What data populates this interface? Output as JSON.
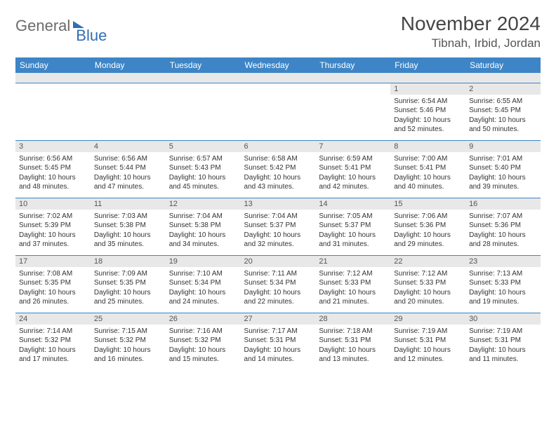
{
  "logo": {
    "part1": "General",
    "part2": "Blue"
  },
  "title": "November 2024",
  "location": "Tibnah, Irbid, Jordan",
  "colors": {
    "header_bg": "#3d85c6",
    "header_text": "#ffffff",
    "daynum_bg": "#e8e8e8",
    "border": "#3d85c6",
    "text": "#333333",
    "logo_gray": "#6b6b6b",
    "logo_blue": "#2f6fb3"
  },
  "weekdays": [
    "Sunday",
    "Monday",
    "Tuesday",
    "Wednesday",
    "Thursday",
    "Friday",
    "Saturday"
  ],
  "weeks": [
    [
      {
        "n": "",
        "sr": "",
        "ss": "",
        "dl": ""
      },
      {
        "n": "",
        "sr": "",
        "ss": "",
        "dl": ""
      },
      {
        "n": "",
        "sr": "",
        "ss": "",
        "dl": ""
      },
      {
        "n": "",
        "sr": "",
        "ss": "",
        "dl": ""
      },
      {
        "n": "",
        "sr": "",
        "ss": "",
        "dl": ""
      },
      {
        "n": "1",
        "sr": "6:54 AM",
        "ss": "5:46 PM",
        "dl": "10 hours and 52 minutes."
      },
      {
        "n": "2",
        "sr": "6:55 AM",
        "ss": "5:45 PM",
        "dl": "10 hours and 50 minutes."
      }
    ],
    [
      {
        "n": "3",
        "sr": "6:56 AM",
        "ss": "5:45 PM",
        "dl": "10 hours and 48 minutes."
      },
      {
        "n": "4",
        "sr": "6:56 AM",
        "ss": "5:44 PM",
        "dl": "10 hours and 47 minutes."
      },
      {
        "n": "5",
        "sr": "6:57 AM",
        "ss": "5:43 PM",
        "dl": "10 hours and 45 minutes."
      },
      {
        "n": "6",
        "sr": "6:58 AM",
        "ss": "5:42 PM",
        "dl": "10 hours and 43 minutes."
      },
      {
        "n": "7",
        "sr": "6:59 AM",
        "ss": "5:41 PM",
        "dl": "10 hours and 42 minutes."
      },
      {
        "n": "8",
        "sr": "7:00 AM",
        "ss": "5:41 PM",
        "dl": "10 hours and 40 minutes."
      },
      {
        "n": "9",
        "sr": "7:01 AM",
        "ss": "5:40 PM",
        "dl": "10 hours and 39 minutes."
      }
    ],
    [
      {
        "n": "10",
        "sr": "7:02 AM",
        "ss": "5:39 PM",
        "dl": "10 hours and 37 minutes."
      },
      {
        "n": "11",
        "sr": "7:03 AM",
        "ss": "5:38 PM",
        "dl": "10 hours and 35 minutes."
      },
      {
        "n": "12",
        "sr": "7:04 AM",
        "ss": "5:38 PM",
        "dl": "10 hours and 34 minutes."
      },
      {
        "n": "13",
        "sr": "7:04 AM",
        "ss": "5:37 PM",
        "dl": "10 hours and 32 minutes."
      },
      {
        "n": "14",
        "sr": "7:05 AM",
        "ss": "5:37 PM",
        "dl": "10 hours and 31 minutes."
      },
      {
        "n": "15",
        "sr": "7:06 AM",
        "ss": "5:36 PM",
        "dl": "10 hours and 29 minutes."
      },
      {
        "n": "16",
        "sr": "7:07 AM",
        "ss": "5:36 PM",
        "dl": "10 hours and 28 minutes."
      }
    ],
    [
      {
        "n": "17",
        "sr": "7:08 AM",
        "ss": "5:35 PM",
        "dl": "10 hours and 26 minutes."
      },
      {
        "n": "18",
        "sr": "7:09 AM",
        "ss": "5:35 PM",
        "dl": "10 hours and 25 minutes."
      },
      {
        "n": "19",
        "sr": "7:10 AM",
        "ss": "5:34 PM",
        "dl": "10 hours and 24 minutes."
      },
      {
        "n": "20",
        "sr": "7:11 AM",
        "ss": "5:34 PM",
        "dl": "10 hours and 22 minutes."
      },
      {
        "n": "21",
        "sr": "7:12 AM",
        "ss": "5:33 PM",
        "dl": "10 hours and 21 minutes."
      },
      {
        "n": "22",
        "sr": "7:12 AM",
        "ss": "5:33 PM",
        "dl": "10 hours and 20 minutes."
      },
      {
        "n": "23",
        "sr": "7:13 AM",
        "ss": "5:33 PM",
        "dl": "10 hours and 19 minutes."
      }
    ],
    [
      {
        "n": "24",
        "sr": "7:14 AM",
        "ss": "5:32 PM",
        "dl": "10 hours and 17 minutes."
      },
      {
        "n": "25",
        "sr": "7:15 AM",
        "ss": "5:32 PM",
        "dl": "10 hours and 16 minutes."
      },
      {
        "n": "26",
        "sr": "7:16 AM",
        "ss": "5:32 PM",
        "dl": "10 hours and 15 minutes."
      },
      {
        "n": "27",
        "sr": "7:17 AM",
        "ss": "5:31 PM",
        "dl": "10 hours and 14 minutes."
      },
      {
        "n": "28",
        "sr": "7:18 AM",
        "ss": "5:31 PM",
        "dl": "10 hours and 13 minutes."
      },
      {
        "n": "29",
        "sr": "7:19 AM",
        "ss": "5:31 PM",
        "dl": "10 hours and 12 minutes."
      },
      {
        "n": "30",
        "sr": "7:19 AM",
        "ss": "5:31 PM",
        "dl": "10 hours and 11 minutes."
      }
    ]
  ],
  "labels": {
    "sunrise": "Sunrise:",
    "sunset": "Sunset:",
    "daylight": "Daylight:"
  }
}
